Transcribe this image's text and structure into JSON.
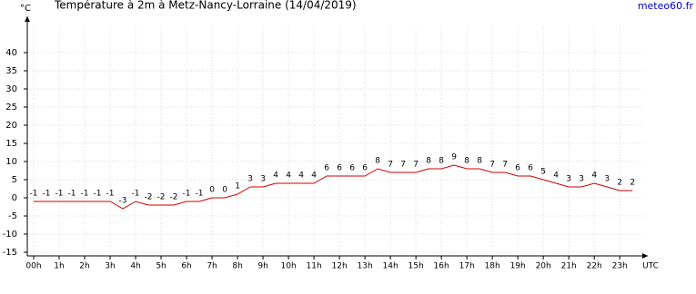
{
  "chart_data": {
    "type": "line",
    "title": "Température à 2m à Metz-Nancy-Lorraine (14/04/2019)",
    "y_label": "°C",
    "x_label": "UTC",
    "source": "meteo60.fr",
    "x": [
      0,
      0.5,
      1,
      1.5,
      2,
      2.5,
      3,
      3.5,
      4,
      4.5,
      5,
      5.5,
      6,
      6.5,
      7,
      7.5,
      8,
      8.5,
      9,
      9.5,
      10,
      10.5,
      11,
      11.5,
      12,
      12.5,
      13,
      13.5,
      14,
      14.5,
      15,
      15.5,
      16,
      16.5,
      17,
      17.5,
      18,
      18.5,
      19,
      19.5,
      20,
      20.5,
      21,
      21.5,
      22,
      22.5,
      23,
      23.5
    ],
    "series": [
      {
        "name": "Température",
        "color": "#cc0000",
        "values": [
          -1,
          -1,
          -1,
          -1,
          -1,
          -1,
          -1,
          -3,
          -1,
          -2,
          -2,
          -2,
          -1,
          -1,
          0,
          0,
          1,
          3,
          3,
          4,
          4,
          4,
          4,
          6,
          6,
          6,
          6,
          8,
          7,
          7,
          7,
          8,
          8,
          9,
          8,
          8,
          7,
          7,
          6,
          6,
          5,
          4,
          3,
          3,
          4,
          3,
          2,
          2
        ]
      }
    ],
    "xlim": [
      -0.25,
      24.1
    ],
    "ylim": [
      -16,
      50
    ],
    "yticks": [
      -15,
      -10,
      -5,
      0,
      5,
      10,
      15,
      20,
      25,
      30,
      35,
      40
    ],
    "xticks": [
      {
        "value": 0,
        "label": "00h"
      },
      {
        "value": 1,
        "label": "1h"
      },
      {
        "value": 2,
        "label": "2h"
      },
      {
        "value": 3,
        "label": "3h"
      },
      {
        "value": 4,
        "label": "4h"
      },
      {
        "value": 5,
        "label": "5h"
      },
      {
        "value": 6,
        "label": "6h"
      },
      {
        "value": 7,
        "label": "7h"
      },
      {
        "value": 8,
        "label": "8h"
      },
      {
        "value": 9,
        "label": "9h"
      },
      {
        "value": 10,
        "label": "10h"
      },
      {
        "value": 11,
        "label": "11h"
      },
      {
        "value": 12,
        "label": "12h"
      },
      {
        "value": 13,
        "label": "13h"
      },
      {
        "value": 14,
        "label": "14h"
      },
      {
        "value": 15,
        "label": "15h"
      },
      {
        "value": 16,
        "label": "16h"
      },
      {
        "value": 17,
        "label": "17h"
      },
      {
        "value": 18,
        "label": "18h"
      },
      {
        "value": 19,
        "label": "19h"
      },
      {
        "value": 20,
        "label": "20h"
      },
      {
        "value": 21,
        "label": "21h"
      },
      {
        "value": 22,
        "label": "22h"
      },
      {
        "value": 23,
        "label": "23h"
      }
    ],
    "grid": true
  }
}
